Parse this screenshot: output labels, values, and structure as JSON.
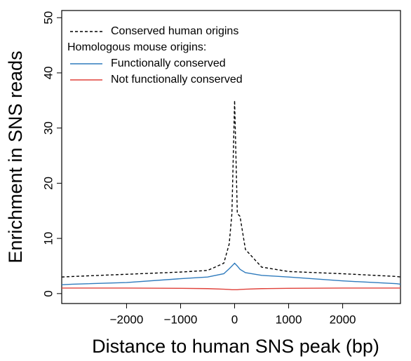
{
  "chart_data": {
    "type": "line",
    "xlabel": "Distance to human SNS peak (bp)",
    "ylabel": "Enrichment in SNS reads",
    "legend_title": "Homologous mouse origins:",
    "x": [
      -3200,
      -3000,
      -2000,
      -1000,
      -500,
      -200,
      -100,
      -50,
      0,
      50,
      100,
      200,
      500,
      1000,
      2000,
      3000,
      3070
    ],
    "series": [
      {
        "name": "Conserved human origins",
        "color": "#000000",
        "dash": true,
        "values": [
          3.0,
          3.1,
          3.5,
          3.9,
          4.2,
          5.5,
          9,
          14.5,
          35,
          14.5,
          14,
          8,
          4.8,
          4.0,
          3.6,
          3.1,
          3.0
        ]
      },
      {
        "name": "Functionally conserved",
        "color": "#2f7bbd",
        "dash": false,
        "values": [
          1.6,
          1.7,
          2.0,
          2.7,
          3.0,
          3.6,
          4.5,
          5.0,
          5.5,
          5.0,
          4.4,
          3.8,
          3.3,
          3.0,
          2.3,
          1.8,
          1.7
        ]
      },
      {
        "name": "Not functionally conserved",
        "color": "#e0413a",
        "dash": false,
        "values": [
          1.0,
          1.0,
          1.0,
          0.95,
          0.9,
          0.8,
          0.75,
          0.7,
          0.7,
          0.7,
          0.75,
          0.8,
          0.9,
          0.95,
          1.0,
          1.0,
          1.0
        ]
      }
    ],
    "xlim": [
      -3200,
      3070
    ],
    "ylim": [
      -1.8,
      51.3
    ],
    "xticks": [
      {
        "value": -2000,
        "label": "−2000"
      },
      {
        "value": -1000,
        "label": "−1000"
      },
      0,
      1000,
      2000
    ],
    "yticks": [
      0,
      10,
      20,
      30,
      40,
      50
    ]
  }
}
